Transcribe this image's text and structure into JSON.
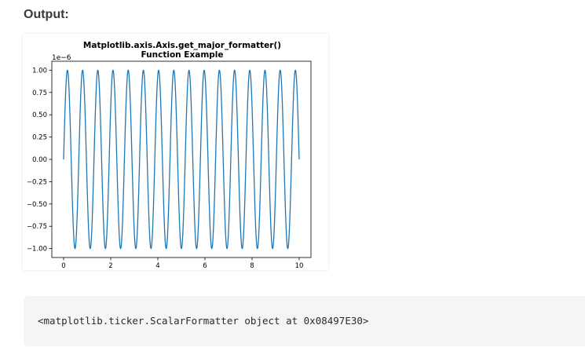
{
  "heading": "Output:",
  "chart_data": {
    "type": "line",
    "title": [
      "Matplotlib.axis.Axis.get_major_formatter()",
      "Function Example"
    ],
    "offset_text": "1e−6",
    "xlabel": "",
    "ylabel": "",
    "xlim": [
      -0.5,
      10.5
    ],
    "ylim": [
      -1.1,
      1.1
    ],
    "xticks": [
      0,
      2,
      4,
      6,
      8,
      10
    ],
    "xtick_labels": [
      "0",
      "2",
      "4",
      "6",
      "8",
      "10"
    ],
    "yticks": [
      1.0,
      0.75,
      0.5,
      0.25,
      0.0,
      -0.25,
      -0.5,
      -0.75,
      -1.0
    ],
    "ytick_labels": [
      "1.00",
      "0.75",
      "0.50",
      "0.25",
      "0.00",
      "−0.25",
      "−0.50",
      "−0.75",
      "−1.00"
    ],
    "grid": false,
    "series": [
      {
        "function": "sin(2*pi*f*x)",
        "frequency": 1.55,
        "amplitude": 1.0,
        "x_range": [
          0,
          10
        ],
        "color": "#1f77b4"
      }
    ]
  },
  "code_output": "<matplotlib.ticker.ScalarFormatter object at 0x08497E30>"
}
